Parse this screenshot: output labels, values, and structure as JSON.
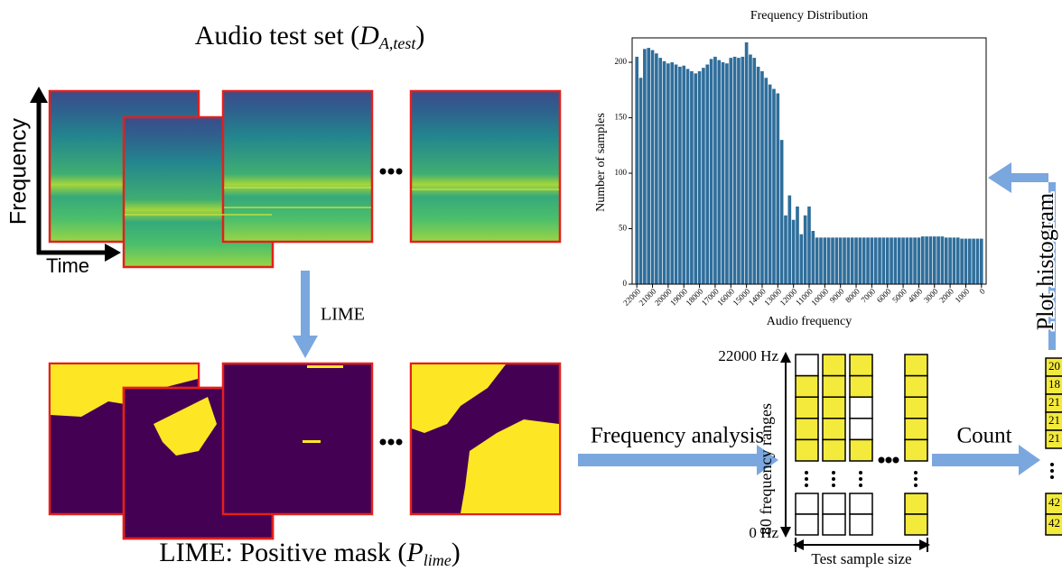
{
  "audio_title": [
    "Audio test set (",
    "D",
    "A,test",
    ")"
  ],
  "mask_title": [
    "LIME: Positive mask (",
    "P",
    "lime",
    ")"
  ],
  "axis_labels": {
    "frequency": "Frequency",
    "time": "Time"
  },
  "arrows": {
    "lime": "LIME",
    "frequency_analysis": "Frequency analysis",
    "count": "Count",
    "plot_histogram": "Plot histogram"
  },
  "matrix": {
    "top": "22000 Hz",
    "bottom": "0 Hz",
    "rows": "80 frequency ranges",
    "columns": "Test sample size"
  },
  "counts": [
    "20",
    "18",
    "21",
    "21",
    "21",
    "42",
    "42"
  ],
  "chart_data": {
    "type": "bar",
    "title": "Frequency Distribution",
    "x_label": "Audio frequency",
    "y_label": "Number of samples",
    "color": "#2f6e9b",
    "x": [
      22000,
      21750,
      21500,
      21250,
      21000,
      20750,
      20500,
      20250,
      20000,
      19750,
      19500,
      19250,
      19000,
      18750,
      18500,
      18250,
      18000,
      17750,
      17500,
      17250,
      17000,
      16750,
      16500,
      16250,
      16000,
      15750,
      15500,
      15250,
      15000,
      14750,
      14500,
      14250,
      14000,
      13750,
      13500,
      13250,
      13000,
      12750,
      12500,
      12250,
      12000,
      11750,
      11500,
      11250,
      11000,
      10750,
      10500,
      10250,
      10000,
      9750,
      9500,
      9250,
      9000,
      8750,
      8500,
      8250,
      8000,
      7750,
      7500,
      7250,
      7000,
      6750,
      6500,
      6250,
      6000,
      5750,
      5500,
      5250,
      5000,
      4750,
      4500,
      4250,
      4000,
      3750,
      3500,
      3250,
      3000,
      2750,
      2500,
      2250,
      2000,
      1750,
      1500,
      1250,
      1000,
      750,
      500,
      250,
      0
    ],
    "values": [
      205,
      186,
      212,
      213,
      211,
      208,
      204,
      201,
      199,
      200,
      198,
      196,
      197,
      194,
      192,
      190,
      192,
      195,
      198,
      203,
      205,
      202,
      200,
      199,
      204,
      205,
      204,
      205,
      218,
      207,
      204,
      196,
      192,
      186,
      180,
      176,
      172,
      130,
      62,
      80,
      58,
      70,
      45,
      62,
      70,
      48,
      42,
      42,
      42,
      42,
      42,
      42,
      42,
      42,
      42,
      42,
      42,
      42,
      42,
      42,
      42,
      42,
      42,
      42,
      42,
      42,
      42,
      42,
      42,
      42,
      42,
      42,
      42,
      43,
      43,
      43,
      43,
      43,
      43,
      42,
      42,
      42,
      42,
      41,
      41,
      41,
      41,
      41,
      41
    ],
    "xlim": [
      22300,
      -300
    ],
    "ylim": [
      0,
      222
    ],
    "xticks": [
      22000,
      21000,
      20000,
      19000,
      18000,
      17000,
      16000,
      15000,
      14000,
      13000,
      12000,
      11000,
      10000,
      9000,
      8000,
      7000,
      6000,
      5000,
      4000,
      3000,
      2000,
      1000,
      0
    ],
    "yticks": [
      0,
      50,
      100,
      150,
      200
    ]
  }
}
